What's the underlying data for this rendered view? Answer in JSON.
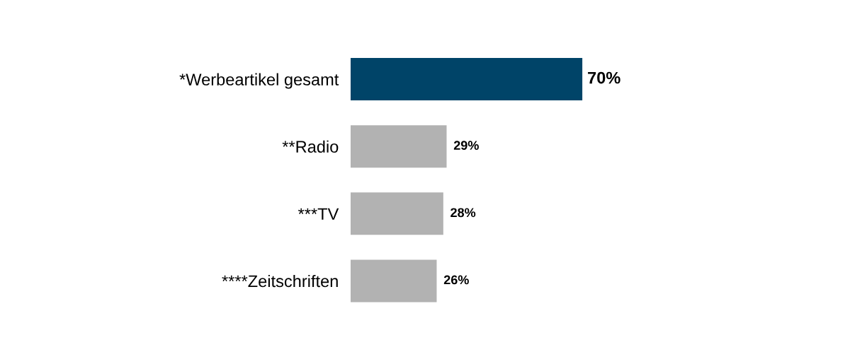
{
  "chart_data": {
    "type": "bar",
    "orientation": "horizontal",
    "categories": [
      "*Werbeartikel gesamt",
      "**Radio",
      "***TV",
      "****Zeitschriften"
    ],
    "values": [
      70,
      29,
      28,
      26
    ],
    "colors": [
      "#004468",
      "#b2b2b2",
      "#b2b2b2",
      "#b2b2b2"
    ],
    "value_labels": [
      "70%",
      "29%",
      "28%",
      "26%"
    ]
  }
}
